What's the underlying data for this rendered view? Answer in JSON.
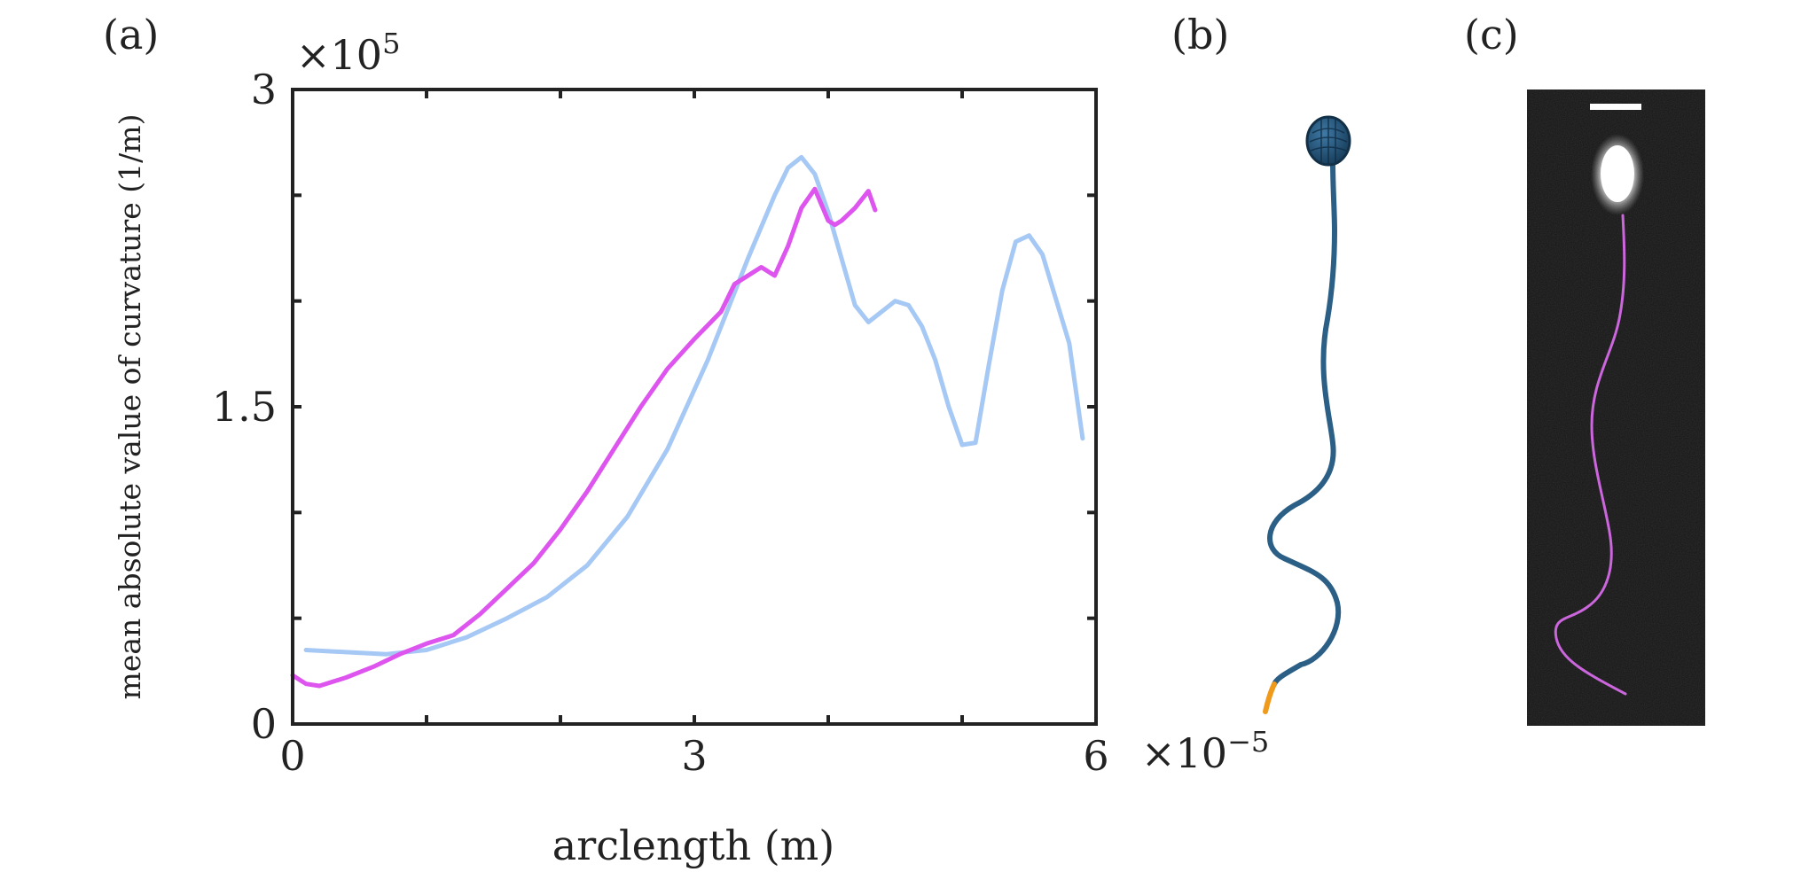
{
  "panels": {
    "a": "(a)",
    "b": "(b)",
    "c": "(c)"
  },
  "chart_data": {
    "type": "line",
    "title": "",
    "xlabel": "arclength (m)",
    "ylabel": "mean absolute value of curvature (1/m)",
    "x_multiplier": "×10−5",
    "y_multiplier": "×105",
    "xlim": [
      0,
      6
    ],
    "ylim": [
      0,
      3
    ],
    "x_ticks": [
      0,
      3,
      6
    ],
    "x_tick_labels": [
      "0",
      "3",
      "6"
    ],
    "y_ticks": [
      0,
      1.5,
      3
    ],
    "y_tick_labels": [
      "0",
      "1.5",
      "3"
    ],
    "x_minor_ticks": [
      1,
      2,
      4,
      5
    ],
    "y_minor_ticks": [
      0.5,
      1,
      2,
      2.5
    ],
    "grid": false,
    "series": [
      {
        "name": "light blue",
        "color": "#a6c8f4",
        "x": [
          0.1,
          0.4,
          0.7,
          1.0,
          1.3,
          1.6,
          1.9,
          2.2,
          2.5,
          2.8,
          3.1,
          3.4,
          3.6,
          3.7,
          3.8,
          3.9,
          4.0,
          4.1,
          4.2,
          4.3,
          4.4,
          4.5,
          4.6,
          4.7,
          4.8,
          4.9,
          5.0,
          5.1,
          5.2,
          5.3,
          5.4,
          5.5,
          5.6,
          5.8,
          5.9
        ],
        "values": [
          0.35,
          0.34,
          0.33,
          0.35,
          0.41,
          0.5,
          0.6,
          0.75,
          0.98,
          1.3,
          1.72,
          2.2,
          2.5,
          2.63,
          2.68,
          2.6,
          2.42,
          2.2,
          1.98,
          1.9,
          1.95,
          2.0,
          1.98,
          1.88,
          1.72,
          1.5,
          1.32,
          1.33,
          1.7,
          2.05,
          2.28,
          2.31,
          2.22,
          1.8,
          1.35
        ]
      },
      {
        "name": "magenta",
        "color": "#dd55ee",
        "x": [
          0.0,
          0.1,
          0.2,
          0.4,
          0.6,
          0.8,
          1.0,
          1.2,
          1.4,
          1.6,
          1.8,
          2.0,
          2.2,
          2.4,
          2.6,
          2.8,
          3.0,
          3.2,
          3.3,
          3.5,
          3.6,
          3.7,
          3.8,
          3.9,
          4.0,
          4.05,
          4.1,
          4.2,
          4.3,
          4.35
        ],
        "values": [
          0.23,
          0.19,
          0.18,
          0.22,
          0.27,
          0.33,
          0.38,
          0.42,
          0.52,
          0.64,
          0.76,
          0.92,
          1.1,
          1.3,
          1.5,
          1.68,
          1.82,
          1.95,
          2.08,
          2.16,
          2.12,
          2.26,
          2.44,
          2.53,
          2.38,
          2.36,
          2.38,
          2.44,
          2.52,
          2.43
        ]
      }
    ]
  },
  "colors": {
    "flagellum": "#2b5f86",
    "flagellum_tip": "#f09a1c",
    "head": "#1f4f72",
    "microscopy_background": "#151515",
    "traced_flagellum": "#cc66dd",
    "scale_bar": "#ffffff"
  }
}
